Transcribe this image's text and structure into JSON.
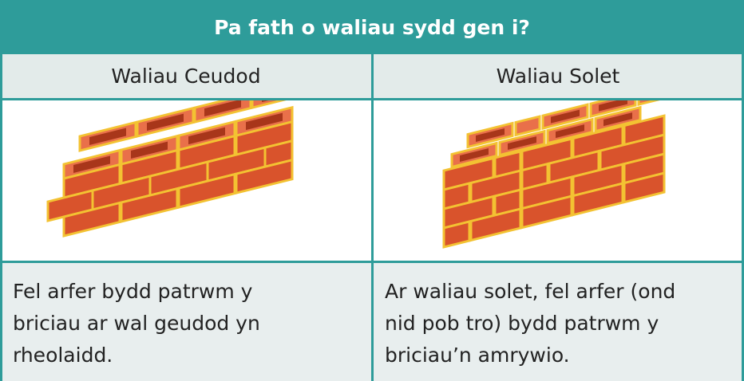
{
  "header": {
    "title": "Pa fath o waliau sydd gen i?"
  },
  "table": {
    "columns": [
      "Waliau Ceudod",
      "Waliau Solet"
    ],
    "rows": [
      [
        [
          "Fel arfer bydd patrwm y",
          "briciau ar wal geudod yn",
          "rheolaidd."
        ],
        [
          "Ar waliau solet, fel arfer (ond",
          "nid pob tro) bydd patrwm y",
          "briciau’n amrywio."
        ]
      ]
    ]
  }
}
